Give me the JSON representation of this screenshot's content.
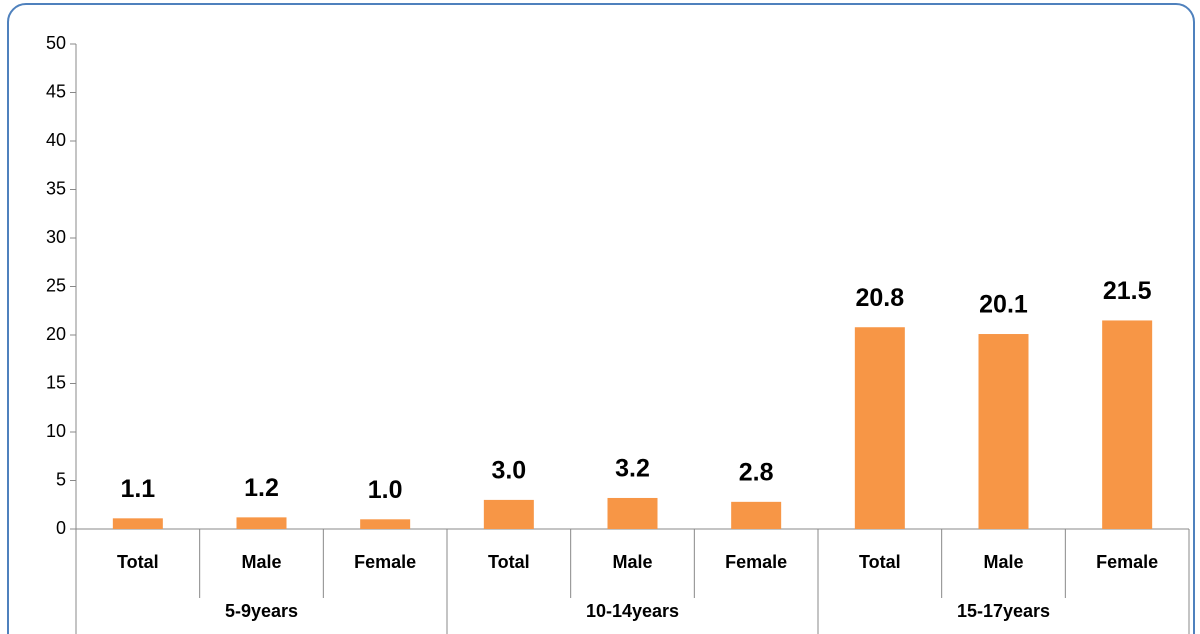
{
  "chart_data": {
    "type": "bar",
    "categories": [
      "Total",
      "Male",
      "Female",
      "Total",
      "Male",
      "Female",
      "Total",
      "Male",
      "Female"
    ],
    "category_groups": [
      "5-9years",
      "10-14years",
      "15-17years"
    ],
    "values": [
      1.1,
      1.2,
      1.0,
      3.0,
      3.2,
      2.8,
      20.8,
      20.1,
      21.5
    ],
    "value_labels": [
      "1.1",
      "1.2",
      "1.0",
      "3.0",
      "3.2",
      "2.8",
      "20.8",
      "20.1",
      "21.5"
    ],
    "color": "#f79646",
    "ylim": [
      0,
      50
    ],
    "yticks": [
      0,
      5,
      10,
      15,
      20,
      25,
      30,
      35,
      40,
      45,
      50
    ]
  }
}
